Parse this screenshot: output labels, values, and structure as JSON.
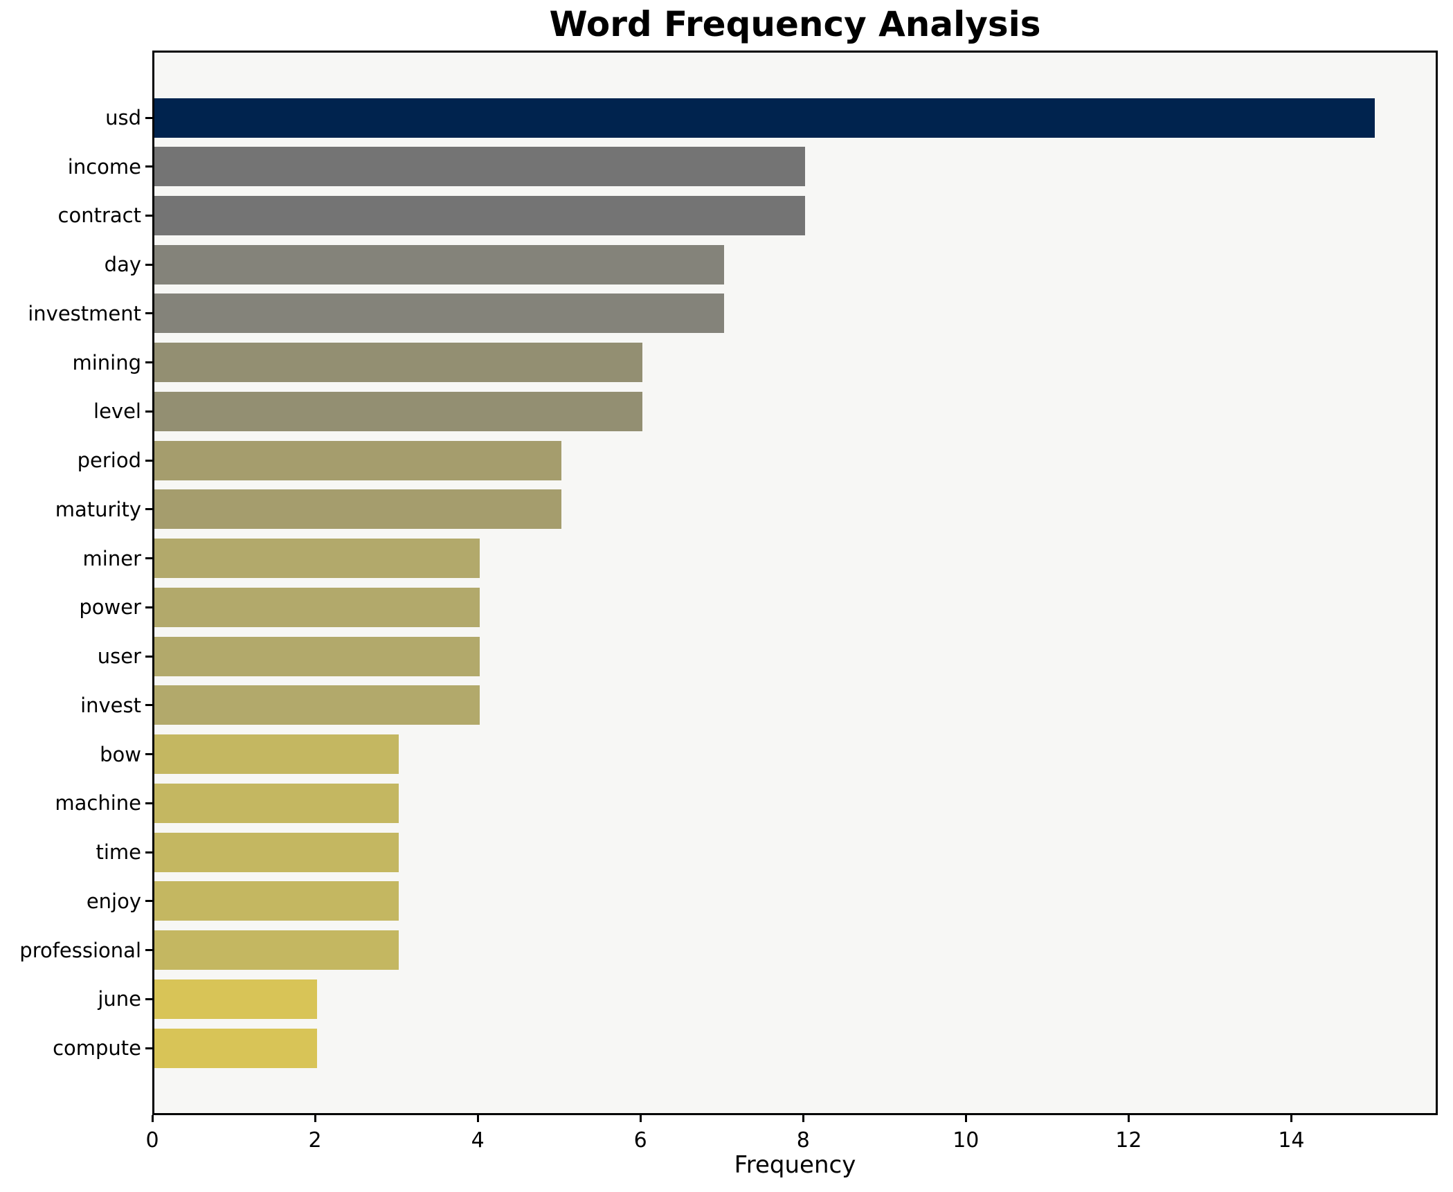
{
  "figure": {
    "title": "Word Frequency Analysis",
    "xlabel": "Frequency",
    "background_color": "#ffffff",
    "plot_background_color": "#f7f7f5",
    "spine_color": "#000000",
    "text_color": "#000000"
  },
  "chart_data": {
    "type": "bar",
    "orientation": "horizontal",
    "title": "Word Frequency Analysis",
    "xlabel": "Frequency",
    "ylabel": "",
    "grid": false,
    "legend": "none",
    "categories": [
      "usd",
      "income",
      "contract",
      "day",
      "investment",
      "mining",
      "level",
      "period",
      "maturity",
      "miner",
      "power",
      "user",
      "invest",
      "bow",
      "machine",
      "time",
      "enjoy",
      "professional",
      "june",
      "compute"
    ],
    "values": [
      15,
      8,
      8,
      7,
      7,
      6,
      6,
      5,
      5,
      4,
      4,
      4,
      4,
      3,
      3,
      3,
      3,
      3,
      2,
      2
    ],
    "bar_colors": [
      "#00234e",
      "#747474",
      "#747474",
      "#84837a",
      "#84837a",
      "#938f72",
      "#938f72",
      "#a59d6d",
      "#a59d6d",
      "#b2a96b",
      "#b2a96b",
      "#b2a96b",
      "#b2a96b",
      "#c4b761",
      "#c4b761",
      "#c4b761",
      "#c4b761",
      "#c4b761",
      "#d8c457",
      "#d8c457"
    ],
    "xticks": [
      0,
      2,
      4,
      6,
      8,
      10,
      12,
      14
    ],
    "xlim": [
      0,
      15.8
    ]
  }
}
